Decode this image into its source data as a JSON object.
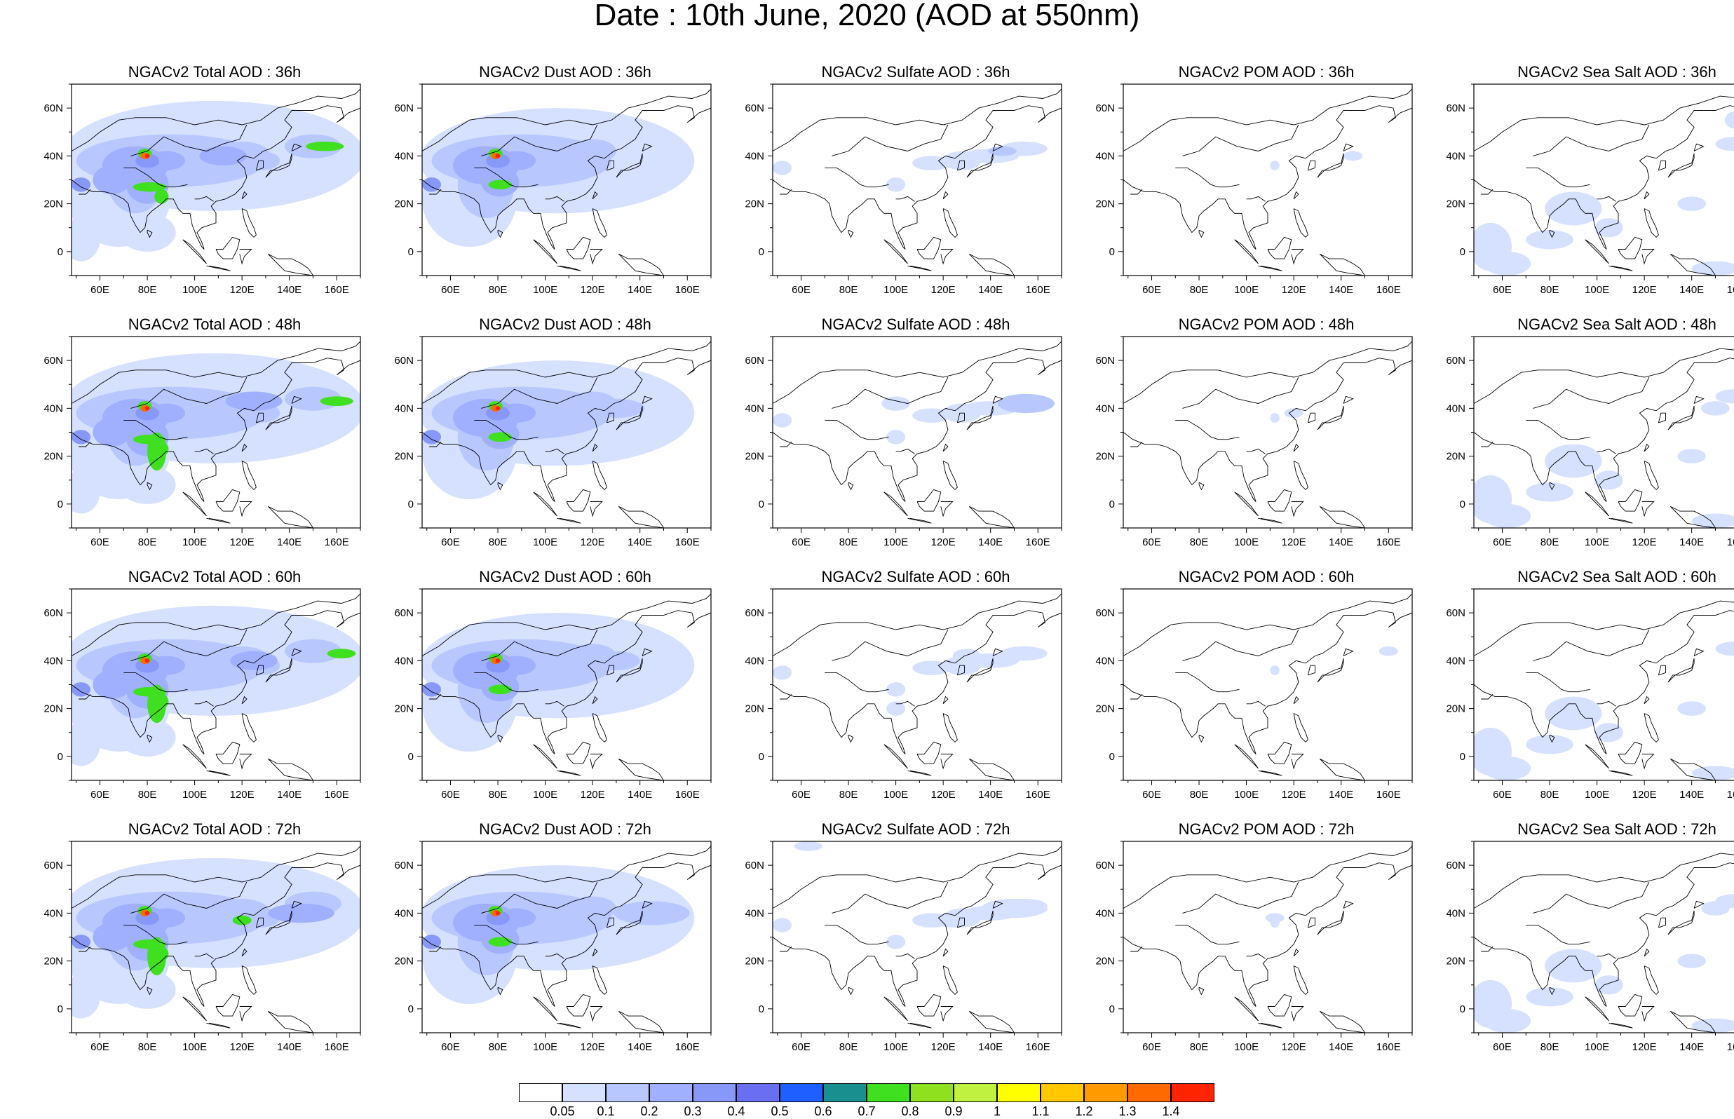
{
  "title": "Date : 10th June, 2020 (AOD at 550nm)",
  "axes": {
    "lon_ticks": [
      "60E",
      "80E",
      "100E",
      "120E",
      "140E",
      "160E"
    ],
    "lat_ticks": [
      "60N",
      "40N",
      "20N",
      "0"
    ],
    "lon_values": [
      60,
      80,
      100,
      120,
      140,
      160
    ],
    "lat_values": [
      60,
      40,
      20,
      0
    ],
    "lon_range": [
      48,
      170
    ],
    "lat_range": [
      -10,
      70
    ]
  },
  "rows": [
    {
      "hour": "36h",
      "titles": [
        "NGACv2 Total AOD : 36h",
        "NGACv2 Dust AOD : 36h",
        "NGACv2 Sulfate AOD : 36h",
        "NGACv2 POM AOD : 36h",
        "NGACv2 Sea Salt AOD : 36h"
      ]
    },
    {
      "hour": "48h",
      "titles": [
        "NGACv2 Total AOD : 48h",
        "NGACv2 Dust AOD : 48h",
        "NGACv2 Sulfate AOD : 48h",
        "NGACv2 POM AOD : 48h",
        "NGACv2 Sea Salt AOD : 48h"
      ]
    },
    {
      "hour": "60h",
      "titles": [
        "NGACv2 Total AOD : 60h",
        "NGACv2 Dust AOD : 60h",
        "NGACv2 Sulfate AOD : 60h",
        "NGACv2 POM AOD : 60h",
        "NGACv2 Sea Salt AOD : 60h"
      ]
    },
    {
      "hour": "72h",
      "titles": [
        "NGACv2 Total AOD : 72h",
        "NGACv2 Dust AOD : 72h",
        "NGACv2 Sulfate AOD : 72h",
        "NGACv2 POM AOD : 72h",
        "NGACv2 Sea Salt  AOD : 72h"
      ]
    }
  ],
  "colorbar": {
    "labels": [
      "0.05",
      "0.1",
      "0.2",
      "0.3",
      "0.4",
      "0.5",
      "0.6",
      "0.7",
      "0.8",
      "0.9",
      "1",
      "1.1",
      "1.2",
      "1.3",
      "1.4"
    ],
    "colors": [
      "#ffffff",
      "#d6e0ff",
      "#b8c8ff",
      "#a0b0ff",
      "#8898f8",
      "#6a6ef0",
      "#1f5fff",
      "#1a8f8f",
      "#3fe01f",
      "#8fe01f",
      "#c0f040",
      "#ffff00",
      "#ffc800",
      "#ff9a00",
      "#ff6a00",
      "#ff2400"
    ]
  }
}
